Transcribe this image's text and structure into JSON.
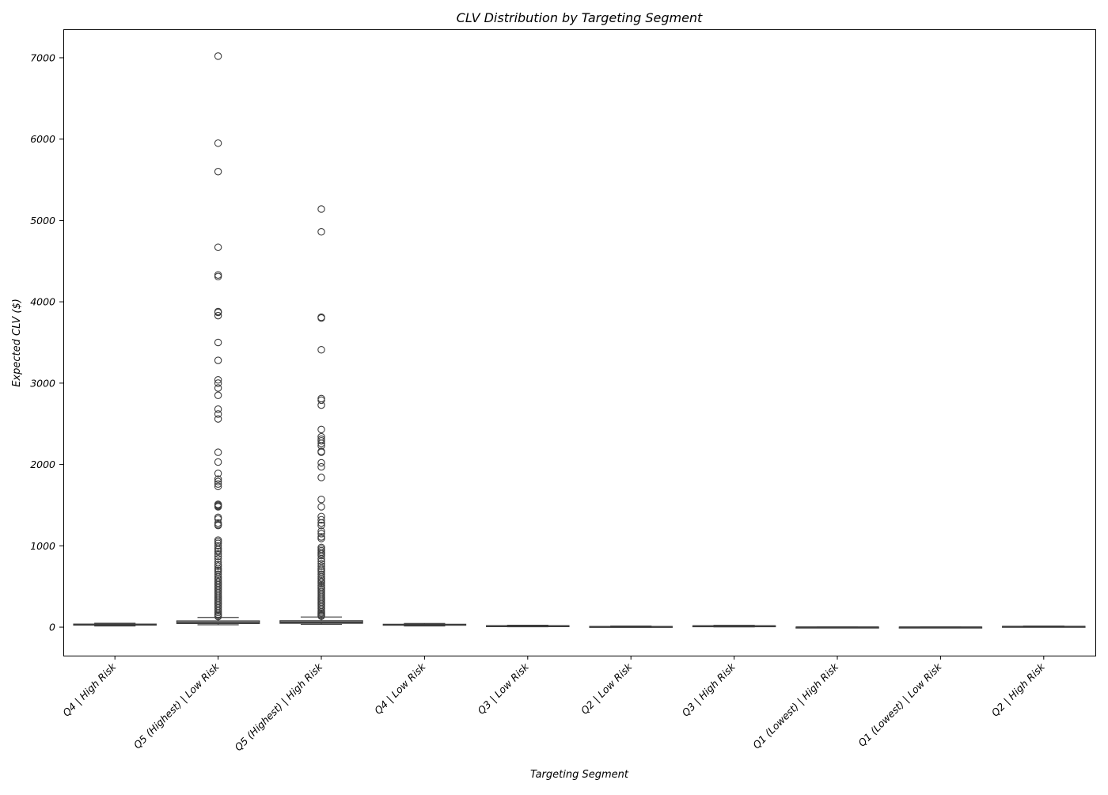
{
  "chart_data": {
    "type": "box",
    "title": "CLV Distribution by Targeting Segment",
    "xlabel": "Targeting Segment",
    "ylabel": "Expected CLV ($)",
    "ylim": [
      -350,
      7350
    ],
    "yticks": [
      0,
      1000,
      2000,
      3000,
      4000,
      5000,
      6000,
      7000
    ],
    "grid": false,
    "box_color": "#3d3d3d",
    "categories": [
      "Q4 | High Risk",
      "Q5 (Highest) | Low Risk",
      "Q5 (Highest) | High Risk",
      "Q4 | Low Risk",
      "Q3 | Low Risk",
      "Q2 | Low Risk",
      "Q3 | High Risk",
      "Q1 (Lowest) | High Risk",
      "Q1 (Lowest) | Low Risk",
      "Q2 | High Risk"
    ],
    "boxes": [
      {
        "whisker_low": 15,
        "q1": 25,
        "median": 32,
        "q3": 38,
        "whisker_high": 48,
        "outliers": []
      },
      {
        "whisker_low": 30,
        "q1": 45,
        "median": 60,
        "q3": 78,
        "whisker_high": 120,
        "outliers": [
          7020,
          5950,
          5600,
          4670,
          4330,
          4310,
          3880,
          3870,
          3830,
          3500,
          3280,
          3040,
          3000,
          2940,
          2850,
          2680,
          2620,
          2560,
          2150,
          2030,
          1890,
          1820,
          1790,
          1760,
          1730,
          1510,
          1500,
          1490,
          1480,
          1350,
          1330,
          1280,
          1260,
          1250,
          1070,
          1050,
          1030,
          1000,
          970,
          950,
          930,
          900,
          870,
          840,
          800,
          770,
          750,
          720,
          700,
          680,
          650,
          620,
          600,
          580,
          560,
          540,
          520,
          500,
          480,
          460,
          440,
          420,
          400,
          380,
          360,
          340,
          320,
          300,
          280,
          260,
          240,
          220,
          200,
          180,
          160,
          145,
          130
        ]
      },
      {
        "whisker_low": 35,
        "q1": 48,
        "median": 62,
        "q3": 80,
        "whisker_high": 125,
        "outliers": [
          5140,
          4860,
          3810,
          3800,
          3410,
          2810,
          2790,
          2730,
          2430,
          2340,
          2310,
          2290,
          2260,
          2230,
          2160,
          2150,
          2020,
          1970,
          1840,
          1570,
          1480,
          1360,
          1320,
          1280,
          1250,
          1180,
          1150,
          1110,
          1090,
          980,
          960,
          940,
          920,
          900,
          880,
          840,
          810,
          780,
          750,
          720,
          700,
          680,
          650,
          620,
          600,
          580,
          560,
          540,
          510,
          490,
          470,
          450,
          430,
          410,
          390,
          370,
          350,
          330,
          310,
          290,
          270,
          250,
          230,
          210,
          190,
          175,
          160,
          145,
          135
        ]
      },
      {
        "whisker_low": 15,
        "q1": 24,
        "median": 30,
        "q3": 36,
        "whisker_high": 46,
        "outliers": []
      },
      {
        "whisker_low": 5,
        "q1": 10,
        "median": 14,
        "q3": 18,
        "whisker_high": 24,
        "outliers": []
      },
      {
        "whisker_low": 0,
        "q1": 3,
        "median": 6,
        "q3": 9,
        "whisker_high": 14,
        "outliers": []
      },
      {
        "whisker_low": 4,
        "q1": 9,
        "median": 13,
        "q3": 17,
        "whisker_high": 22,
        "outliers": []
      },
      {
        "whisker_low": -2,
        "q1": -1,
        "median": 0,
        "q3": 1,
        "whisker_high": 2,
        "outliers": []
      },
      {
        "whisker_low": -2,
        "q1": -1,
        "median": 0,
        "q3": 1,
        "whisker_high": 2,
        "outliers": []
      },
      {
        "whisker_low": 1,
        "q1": 4,
        "median": 7,
        "q3": 10,
        "whisker_high": 14,
        "outliers": []
      }
    ]
  }
}
